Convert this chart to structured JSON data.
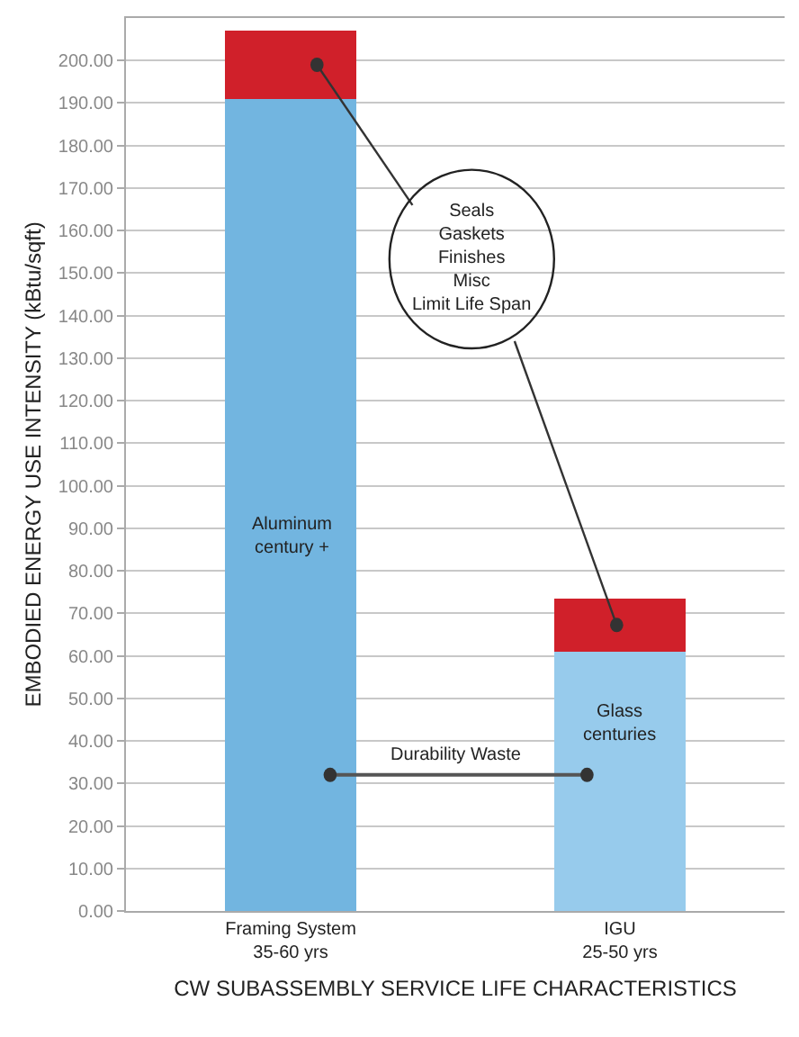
{
  "chart_data": {
    "type": "bar",
    "stacked": true,
    "xlabel": "CW SUBASSEMBLY SERVICE LIFE CHARACTERISTICS",
    "ylabel": "EMBODIED ENERGY USE INTENSITY (kBtu/sqft)",
    "categories": [
      "Framing System\n35-60 yrs",
      "IGU\n25-50 yrs"
    ],
    "series": [
      {
        "colors": [
          "#72b5e0",
          "#97cbec"
        ],
        "values": [
          191,
          61
        ]
      },
      {
        "colors": [
          "#d0202a",
          "#d0202a"
        ],
        "values": [
          16,
          12.5
        ]
      }
    ],
    "ylim": [
      0,
      210
    ],
    "yticks": [
      {
        "value": 0,
        "label": "0.00"
      },
      {
        "value": 10,
        "label": "10.00"
      },
      {
        "value": 20,
        "label": "20.00"
      },
      {
        "value": 30,
        "label": "30.00"
      },
      {
        "value": 40,
        "label": "40.00"
      },
      {
        "value": 50,
        "label": "50.00"
      },
      {
        "value": 60,
        "label": "60.00"
      },
      {
        "value": 70,
        "label": "70.00"
      },
      {
        "value": 80,
        "label": "80.00"
      },
      {
        "value": 90,
        "label": "90.00"
      },
      {
        "value": 100,
        "label": "100.00"
      },
      {
        "value": 110,
        "label": "110.00"
      },
      {
        "value": 120,
        "label": "120.00"
      },
      {
        "value": 130,
        "label": "130.00"
      },
      {
        "value": 140,
        "label": "140.00"
      },
      {
        "value": 150,
        "label": "150.00"
      },
      {
        "value": 160,
        "label": "160.00"
      },
      {
        "value": 170,
        "label": "170.00"
      },
      {
        "value": 180,
        "label": "180.00"
      },
      {
        "value": 190,
        "label": "190.00"
      },
      {
        "value": 200,
        "label": "200.00"
      }
    ],
    "grid": "y",
    "annotations": [
      "Aluminum\ncentury +",
      "Glass\ncenturies",
      "Seals\nGaskets\nFinishes\nMisc\nLimit Life Span",
      "Durability Waste"
    ]
  }
}
